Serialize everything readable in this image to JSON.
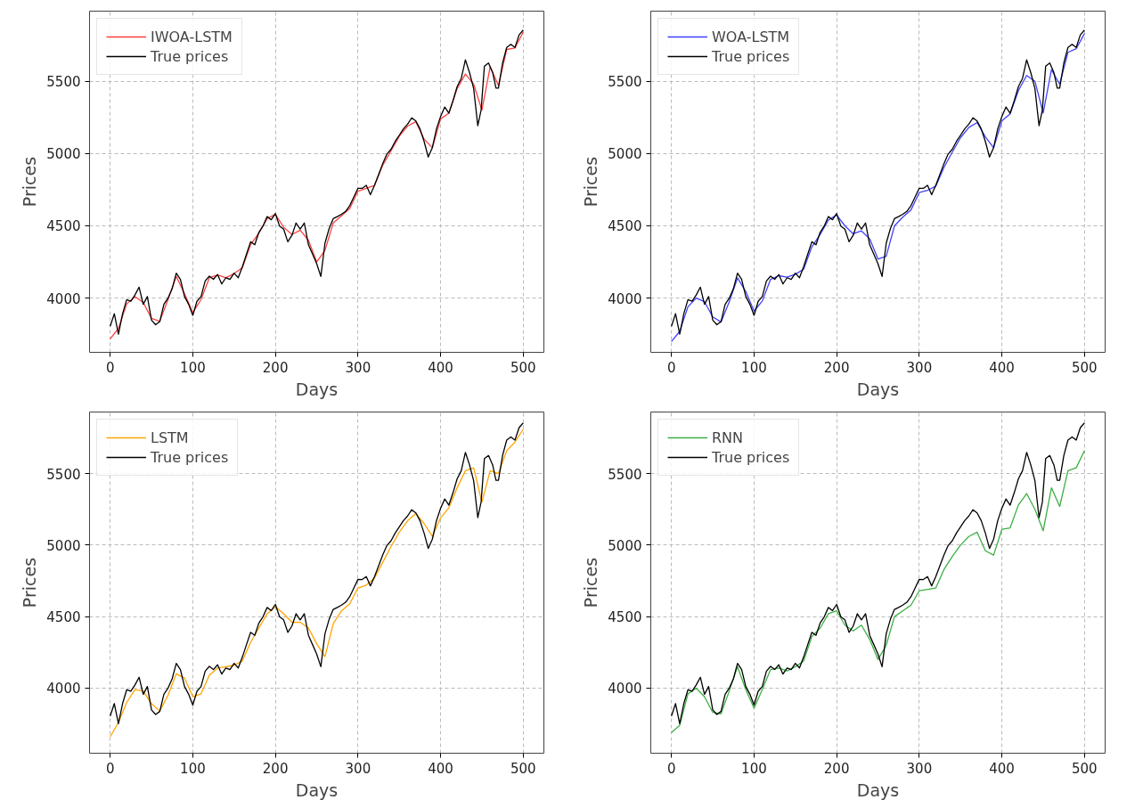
{
  "chart_data": [
    {
      "type": "line",
      "xlabel": "Days",
      "ylabel": "Prices",
      "xlim": [
        -25,
        525
      ],
      "ylim": [
        3625,
        5985
      ],
      "xticks": [
        0,
        100,
        200,
        300,
        400,
        500
      ],
      "yticks": [
        4000,
        4500,
        5000,
        5500
      ],
      "grid": true,
      "legend": "top left",
      "series": [
        {
          "name": "IWOA-LSTM",
          "color": "#ff4040",
          "x": [
            0,
            10,
            20,
            30,
            40,
            50,
            60,
            70,
            80,
            90,
            100,
            110,
            120,
            130,
            140,
            150,
            160,
            170,
            180,
            190,
            200,
            210,
            220,
            230,
            240,
            250,
            260,
            270,
            280,
            290,
            300,
            310,
            320,
            330,
            340,
            350,
            360,
            370,
            380,
            390,
            400,
            410,
            420,
            430,
            440,
            450,
            460,
            470,
            480,
            490,
            500
          ],
          "values": [
            3718,
            3790,
            3960,
            4010,
            3970,
            3860,
            3840,
            3990,
            4150,
            4030,
            3900,
            3990,
            4140,
            4160,
            4140,
            4170,
            4210,
            4370,
            4450,
            4550,
            4580,
            4490,
            4440,
            4470,
            4400,
            4250,
            4330,
            4520,
            4570,
            4620,
            4740,
            4760,
            4780,
            4920,
            5020,
            5120,
            5190,
            5220,
            5100,
            5040,
            5240,
            5280,
            5450,
            5550,
            5480,
            5300,
            5600,
            5470,
            5720,
            5730,
            5840
          ]
        },
        {
          "name": "True prices",
          "color": "#000000",
          "x": [
            0,
            5,
            10,
            15,
            20,
            25,
            30,
            35,
            40,
            45,
            50,
            55,
            60,
            65,
            70,
            75,
            80,
            85,
            90,
            95,
            100,
            105,
            110,
            115,
            120,
            125,
            130,
            135,
            140,
            145,
            150,
            155,
            160,
            165,
            170,
            175,
            180,
            185,
            190,
            195,
            200,
            205,
            210,
            215,
            220,
            225,
            230,
            235,
            240,
            245,
            250,
            255,
            260,
            265,
            270,
            275,
            280,
            285,
            290,
            295,
            300,
            305,
            310,
            315,
            320,
            325,
            330,
            335,
            340,
            345,
            350,
            355,
            360,
            365,
            370,
            375,
            380,
            385,
            390,
            395,
            400,
            405,
            410,
            415,
            420,
            425,
            430,
            435,
            440,
            445,
            449,
            453,
            458,
            463,
            467,
            470,
            475,
            480,
            485,
            490,
            495,
            500
          ],
          "values": [
            3805,
            3892,
            3751,
            3892,
            3989,
            3978,
            4022,
            4076,
            3957,
            4011,
            3848,
            3816,
            3837,
            3957,
            4000,
            4065,
            4173,
            4130,
            4011,
            3957,
            3881,
            3978,
            4011,
            4119,
            4152,
            4130,
            4163,
            4098,
            4141,
            4130,
            4173,
            4141,
            4217,
            4304,
            4390,
            4369,
            4455,
            4499,
            4564,
            4542,
            4585,
            4499,
            4477,
            4390,
            4434,
            4520,
            4477,
            4520,
            4369,
            4304,
            4238,
            4150,
            4380,
            4480,
            4550,
            4564,
            4580,
            4600,
            4640,
            4700,
            4760,
            4759,
            4780,
            4715,
            4780,
            4856,
            4932,
            4997,
            5030,
            5084,
            5127,
            5171,
            5203,
            5247,
            5225,
            5171,
            5084,
            4976,
            5041,
            5171,
            5257,
            5322,
            5279,
            5366,
            5463,
            5520,
            5648,
            5560,
            5450,
            5192,
            5300,
            5604,
            5626,
            5560,
            5453,
            5453,
            5626,
            5734,
            5756,
            5734,
            5821,
            5854
          ]
        }
      ]
    },
    {
      "type": "line",
      "xlabel": "Days",
      "ylabel": "Prices",
      "xlim": [
        -25,
        525
      ],
      "ylim": [
        3625,
        5985
      ],
      "xticks": [
        0,
        100,
        200,
        300,
        400,
        500
      ],
      "yticks": [
        4000,
        4500,
        5000,
        5500
      ],
      "grid": true,
      "legend": "top left",
      "series": [
        {
          "name": "WOA-LSTM",
          "color": "#4040ff",
          "x": [
            0,
            10,
            20,
            30,
            40,
            50,
            60,
            70,
            80,
            90,
            100,
            110,
            120,
            130,
            140,
            150,
            160,
            170,
            180,
            190,
            200,
            210,
            220,
            230,
            240,
            250,
            260,
            270,
            280,
            290,
            300,
            310,
            320,
            330,
            340,
            350,
            360,
            370,
            380,
            390,
            400,
            410,
            420,
            430,
            440,
            450,
            460,
            470,
            480,
            490,
            500
          ],
          "values": [
            3700,
            3770,
            3940,
            4000,
            3975,
            3870,
            3835,
            3975,
            4140,
            4045,
            3910,
            3980,
            4130,
            4155,
            4145,
            4165,
            4200,
            4355,
            4440,
            4540,
            4575,
            4500,
            4445,
            4465,
            4410,
            4270,
            4290,
            4500,
            4560,
            4610,
            4730,
            4745,
            4775,
            4905,
            5010,
            5110,
            5180,
            5215,
            5115,
            5040,
            5225,
            5275,
            5435,
            5540,
            5500,
            5280,
            5580,
            5480,
            5700,
            5725,
            5830
          ]
        },
        {
          "name": "True prices",
          "color": "#000000",
          "x": [
            0,
            5,
            10,
            15,
            20,
            25,
            30,
            35,
            40,
            45,
            50,
            55,
            60,
            65,
            70,
            75,
            80,
            85,
            90,
            95,
            100,
            105,
            110,
            115,
            120,
            125,
            130,
            135,
            140,
            145,
            150,
            155,
            160,
            165,
            170,
            175,
            180,
            185,
            190,
            195,
            200,
            205,
            210,
            215,
            220,
            225,
            230,
            235,
            240,
            245,
            250,
            255,
            260,
            265,
            270,
            275,
            280,
            285,
            290,
            295,
            300,
            305,
            310,
            315,
            320,
            325,
            330,
            335,
            340,
            345,
            350,
            355,
            360,
            365,
            370,
            375,
            380,
            385,
            390,
            395,
            400,
            405,
            410,
            415,
            420,
            425,
            430,
            435,
            440,
            445,
            449,
            453,
            458,
            463,
            467,
            470,
            475,
            480,
            485,
            490,
            495,
            500
          ],
          "values": [
            3805,
            3892,
            3751,
            3892,
            3989,
            3978,
            4022,
            4076,
            3957,
            4011,
            3848,
            3816,
            3837,
            3957,
            4000,
            4065,
            4173,
            4130,
            4011,
            3957,
            3881,
            3978,
            4011,
            4119,
            4152,
            4130,
            4163,
            4098,
            4141,
            4130,
            4173,
            4141,
            4217,
            4304,
            4390,
            4369,
            4455,
            4499,
            4564,
            4542,
            4585,
            4499,
            4477,
            4390,
            4434,
            4520,
            4477,
            4520,
            4369,
            4304,
            4238,
            4150,
            4380,
            4480,
            4550,
            4564,
            4580,
            4600,
            4640,
            4700,
            4760,
            4759,
            4780,
            4715,
            4780,
            4856,
            4932,
            4997,
            5030,
            5084,
            5127,
            5171,
            5203,
            5247,
            5225,
            5171,
            5084,
            4976,
            5041,
            5171,
            5257,
            5322,
            5279,
            5366,
            5463,
            5520,
            5648,
            5560,
            5450,
            5192,
            5300,
            5604,
            5626,
            5560,
            5453,
            5453,
            5626,
            5734,
            5756,
            5734,
            5821,
            5854
          ]
        }
      ]
    },
    {
      "type": "line",
      "xlabel": "Days",
      "ylabel": "Prices",
      "xlim": [
        -25,
        525
      ],
      "ylim": [
        3545,
        5930
      ],
      "xticks": [
        0,
        100,
        200,
        300,
        400,
        500
      ],
      "yticks": [
        4000,
        4500,
        5000,
        5500
      ],
      "grid": true,
      "legend": "top left",
      "series": [
        {
          "name": "LSTM",
          "color": "#ffa500",
          "x": [
            0,
            10,
            20,
            30,
            40,
            50,
            60,
            70,
            80,
            90,
            100,
            110,
            120,
            130,
            140,
            150,
            160,
            170,
            180,
            190,
            200,
            210,
            220,
            230,
            240,
            250,
            260,
            270,
            280,
            290,
            300,
            310,
            320,
            330,
            340,
            350,
            360,
            370,
            380,
            390,
            400,
            410,
            420,
            430,
            440,
            450,
            460,
            470,
            480,
            490,
            500
          ],
          "values": [
            3660,
            3760,
            3900,
            3990,
            3980,
            3890,
            3840,
            3950,
            4100,
            4070,
            3940,
            3960,
            4090,
            4140,
            4150,
            4160,
            4190,
            4320,
            4420,
            4520,
            4570,
            4520,
            4460,
            4460,
            4420,
            4310,
            4220,
            4450,
            4540,
            4590,
            4700,
            4720,
            4770,
            4880,
            4990,
            5090,
            5170,
            5220,
            5150,
            5060,
            5190,
            5260,
            5400,
            5520,
            5540,
            5300,
            5520,
            5500,
            5660,
            5720,
            5810
          ]
        },
        {
          "name": "True prices",
          "color": "#000000",
          "x": [
            0,
            5,
            10,
            15,
            20,
            25,
            30,
            35,
            40,
            45,
            50,
            55,
            60,
            65,
            70,
            75,
            80,
            85,
            90,
            95,
            100,
            105,
            110,
            115,
            120,
            125,
            130,
            135,
            140,
            145,
            150,
            155,
            160,
            165,
            170,
            175,
            180,
            185,
            190,
            195,
            200,
            205,
            210,
            215,
            220,
            225,
            230,
            235,
            240,
            245,
            250,
            255,
            260,
            265,
            270,
            275,
            280,
            285,
            290,
            295,
            300,
            305,
            310,
            315,
            320,
            325,
            330,
            335,
            340,
            345,
            350,
            355,
            360,
            365,
            370,
            375,
            380,
            385,
            390,
            395,
            400,
            405,
            410,
            415,
            420,
            425,
            430,
            435,
            440,
            445,
            449,
            453,
            458,
            463,
            467,
            470,
            475,
            480,
            485,
            490,
            495,
            500
          ],
          "values": [
            3805,
            3892,
            3751,
            3892,
            3989,
            3978,
            4022,
            4076,
            3957,
            4011,
            3848,
            3816,
            3837,
            3957,
            4000,
            4065,
            4173,
            4130,
            4011,
            3957,
            3881,
            3978,
            4011,
            4119,
            4152,
            4130,
            4163,
            4098,
            4141,
            4130,
            4173,
            4141,
            4217,
            4304,
            4390,
            4369,
            4455,
            4499,
            4564,
            4542,
            4585,
            4499,
            4477,
            4390,
            4434,
            4520,
            4477,
            4520,
            4369,
            4304,
            4238,
            4150,
            4380,
            4480,
            4550,
            4564,
            4580,
            4600,
            4640,
            4700,
            4760,
            4759,
            4780,
            4715,
            4780,
            4856,
            4932,
            4997,
            5030,
            5084,
            5127,
            5171,
            5203,
            5247,
            5225,
            5171,
            5084,
            4976,
            5041,
            5171,
            5257,
            5322,
            5279,
            5366,
            5463,
            5520,
            5648,
            5560,
            5450,
            5192,
            5300,
            5604,
            5626,
            5560,
            5453,
            5453,
            5626,
            5734,
            5756,
            5734,
            5821,
            5854
          ]
        }
      ]
    },
    {
      "type": "line",
      "xlabel": "Days",
      "ylabel": "Prices",
      "xlim": [
        -25,
        525
      ],
      "ylim": [
        3545,
        5930
      ],
      "xticks": [
        0,
        100,
        200,
        300,
        400,
        500
      ],
      "yticks": [
        4000,
        4500,
        5000,
        5500
      ],
      "grid": true,
      "legend": "top left",
      "series": [
        {
          "name": "RNN",
          "color": "#3cb043",
          "x": [
            0,
            10,
            20,
            30,
            40,
            50,
            60,
            70,
            80,
            90,
            100,
            110,
            120,
            130,
            140,
            150,
            160,
            170,
            180,
            190,
            200,
            210,
            220,
            230,
            240,
            250,
            260,
            270,
            280,
            290,
            300,
            310,
            320,
            330,
            340,
            350,
            360,
            370,
            380,
            390,
            400,
            410,
            420,
            430,
            440,
            450,
            460,
            470,
            480,
            490,
            500
          ],
          "values": [
            3690,
            3740,
            3960,
            4000,
            3940,
            3830,
            3820,
            3980,
            4150,
            3990,
            3860,
            3990,
            4130,
            4140,
            4120,
            4150,
            4190,
            4360,
            4420,
            4520,
            4540,
            4440,
            4400,
            4440,
            4340,
            4200,
            4300,
            4500,
            4540,
            4580,
            4680,
            4690,
            4700,
            4830,
            4920,
            5000,
            5060,
            5090,
            4960,
            4930,
            5110,
            5120,
            5280,
            5360,
            5250,
            5100,
            5400,
            5270,
            5520,
            5540,
            5660
          ]
        },
        {
          "name": "True prices",
          "color": "#000000",
          "x": [
            0,
            5,
            10,
            15,
            20,
            25,
            30,
            35,
            40,
            45,
            50,
            55,
            60,
            65,
            70,
            75,
            80,
            85,
            90,
            95,
            100,
            105,
            110,
            115,
            120,
            125,
            130,
            135,
            140,
            145,
            150,
            155,
            160,
            165,
            170,
            175,
            180,
            185,
            190,
            195,
            200,
            205,
            210,
            215,
            220,
            225,
            230,
            235,
            240,
            245,
            250,
            255,
            260,
            265,
            270,
            275,
            280,
            285,
            290,
            295,
            300,
            305,
            310,
            315,
            320,
            325,
            330,
            335,
            340,
            345,
            350,
            355,
            360,
            365,
            370,
            375,
            380,
            385,
            390,
            395,
            400,
            405,
            410,
            415,
            420,
            425,
            430,
            435,
            440,
            445,
            449,
            453,
            458,
            463,
            467,
            470,
            475,
            480,
            485,
            490,
            495,
            500
          ],
          "values": [
            3805,
            3892,
            3751,
            3892,
            3989,
            3978,
            4022,
            4076,
            3957,
            4011,
            3848,
            3816,
            3837,
            3957,
            4000,
            4065,
            4173,
            4130,
            4011,
            3957,
            3881,
            3978,
            4011,
            4119,
            4152,
            4130,
            4163,
            4098,
            4141,
            4130,
            4173,
            4141,
            4217,
            4304,
            4390,
            4369,
            4455,
            4499,
            4564,
            4542,
            4585,
            4499,
            4477,
            4390,
            4434,
            4520,
            4477,
            4520,
            4369,
            4304,
            4238,
            4150,
            4380,
            4480,
            4550,
            4564,
            4580,
            4600,
            4640,
            4700,
            4760,
            4759,
            4780,
            4715,
            4780,
            4856,
            4932,
            4997,
            5030,
            5084,
            5127,
            5171,
            5203,
            5247,
            5225,
            5171,
            5084,
            4976,
            5041,
            5171,
            5257,
            5322,
            5279,
            5366,
            5463,
            5520,
            5648,
            5560,
            5450,
            5192,
            5300,
            5604,
            5626,
            5560,
            5453,
            5453,
            5626,
            5734,
            5756,
            5734,
            5821,
            5854
          ]
        }
      ]
    }
  ]
}
